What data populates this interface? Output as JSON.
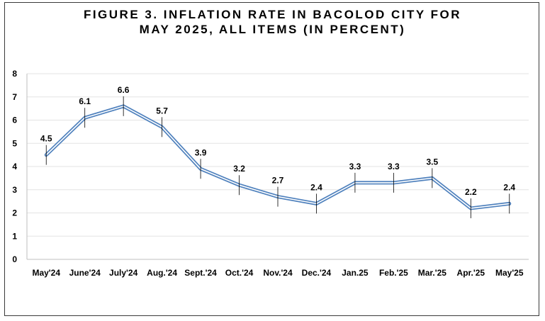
{
  "chart_data": {
    "type": "line",
    "title_line1": "FIGURE 3. INFLATION RATE IN BACOLOD CITY FOR",
    "title_line2": "MAY 2025, ALL ITEMS (IN PERCENT)",
    "categories": [
      "May'24",
      "June'24",
      "July'24",
      "Aug.'24",
      "Sept.'24",
      "Oct.'24",
      "Nov.'24",
      "Dec.'24",
      "Jan.25",
      "Feb.'25",
      "Mar.'25",
      "Apr.'25",
      "May'25"
    ],
    "series": [
      {
        "values": [
          4.5,
          6.1,
          6.6,
          5.7,
          3.9,
          3.2,
          2.7,
          2.4,
          3.3,
          3.3,
          3.5,
          2.2,
          2.4
        ]
      }
    ],
    "data_labels": [
      "4.5",
      "6.1",
      "6.6",
      "5.7",
      "3.9",
      "3.2",
      "2.7",
      "2.4",
      "3.3",
      "3.3",
      "3.5",
      "2.2",
      "2.4"
    ],
    "yticks": [
      "0",
      "1",
      "2",
      "3",
      "4",
      "5",
      "6",
      "7",
      "8"
    ],
    "ylim": [
      0,
      8
    ],
    "grid": true,
    "legend": "none",
    "colors": {
      "line": "#4f81bd",
      "grid": "#e3e3e3",
      "axis": "#bfbfbf",
      "error_bar": "#000000"
    }
  }
}
